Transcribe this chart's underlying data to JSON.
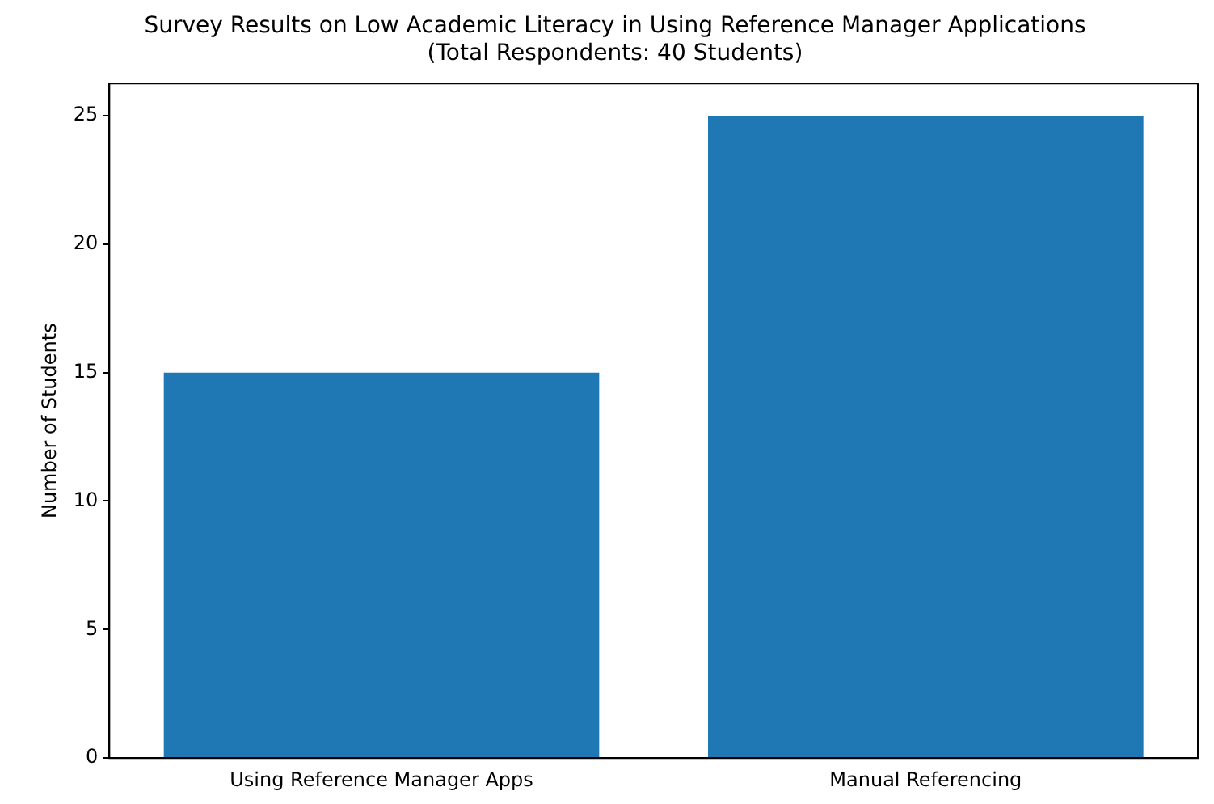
{
  "chart_data": {
    "type": "bar",
    "title": "Survey Results on Low Academic Literacy in Using Reference Manager Applications",
    "subtitle": "(Total Respondents: 40 Students)",
    "ylabel": "Number of Students",
    "categories": [
      "Using Reference Manager Apps",
      "Manual Referencing"
    ],
    "values": [
      15,
      25
    ],
    "color": "#1f77b4",
    "ylim": [
      0,
      26.25
    ],
    "yticks": [
      0,
      5,
      10,
      15,
      20,
      25
    ],
    "grid": false
  }
}
